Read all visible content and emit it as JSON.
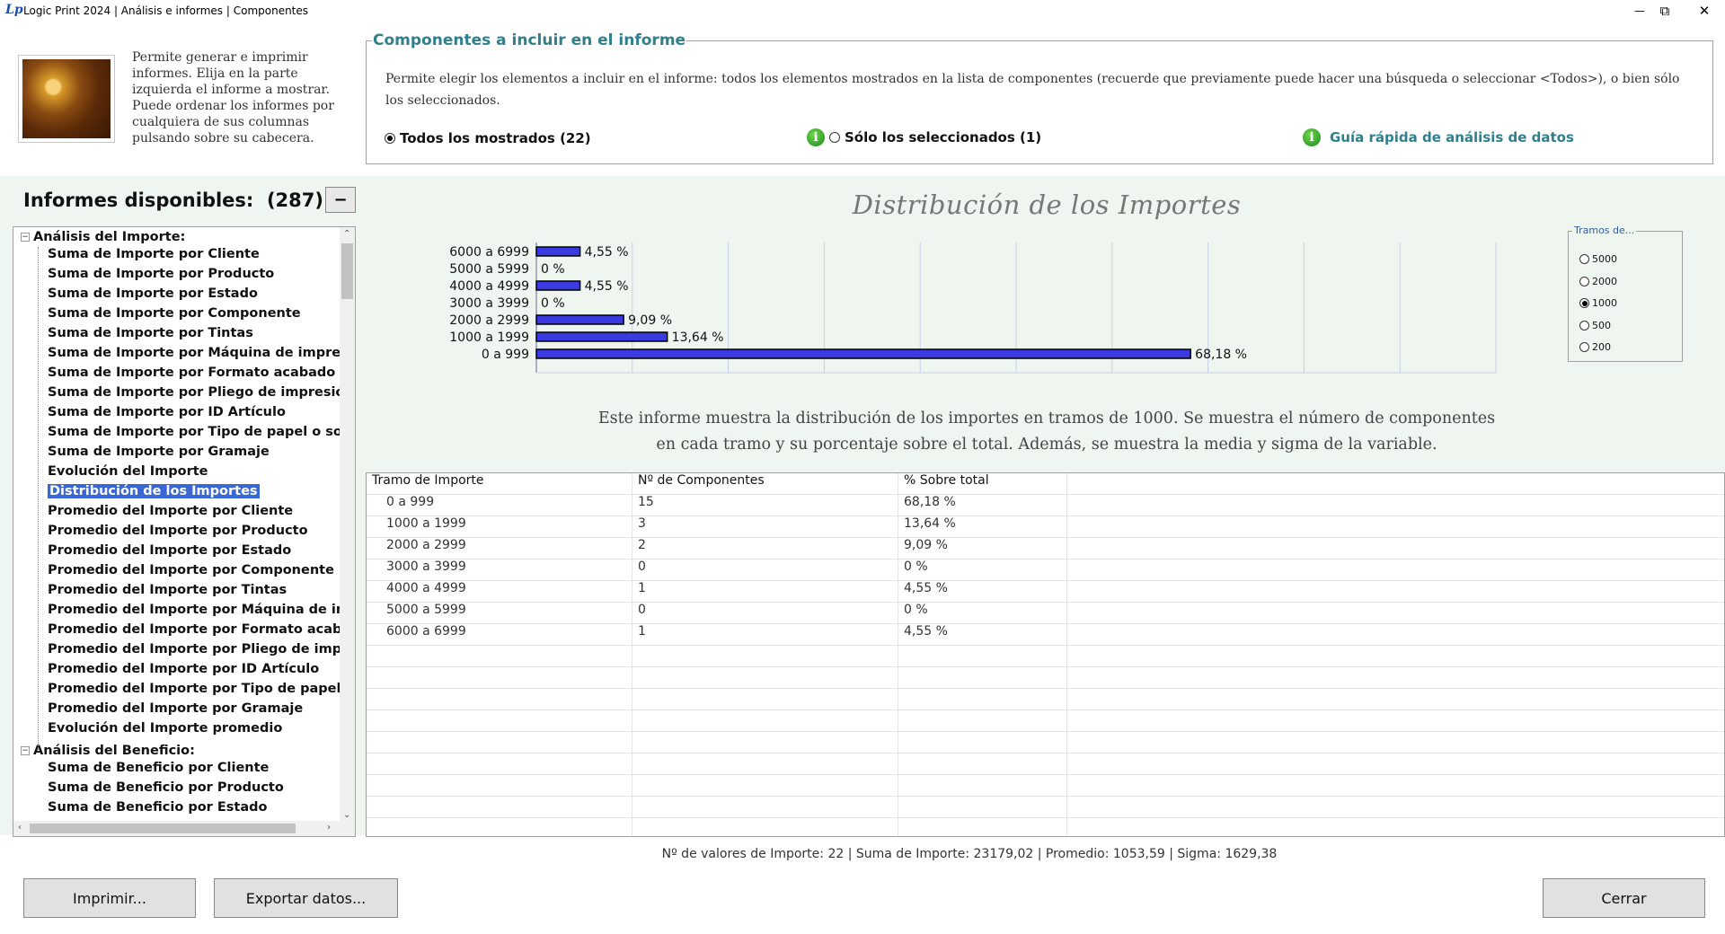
{
  "window": {
    "logo": "Lp",
    "title": "Logic Print 2024 | Análisis e informes | Componentes",
    "min_symbol": "—",
    "max_symbol": "⧉",
    "close_symbol": "✕",
    "logo_icon": "logic-print-logo-icon"
  },
  "intro": "Permite generar e imprimir informes. Elija en la parte izquierda el informe a mostrar. Puede ordenar los informes por cualquiera de sus columnas pulsando sobre su cabecera.",
  "components": {
    "legend": "Componentes a incluir en el informe",
    "description": "Permite elegir los elementos a incluir en el informe: todos los elementos mostrados en la lista de componentes (recuerde que previamente puede hacer una búsqueda o seleccionar <Todos>), o bien sólo los seleccionados.",
    "opt_all": "Todos los mostrados (22)",
    "opt_selected": "Sólo los seleccionados (1)",
    "selected_option": "all",
    "info_glyph": "i",
    "guide": "Guía rápida de análisis de datos"
  },
  "reports": {
    "title": "Informes disponibles:",
    "count": "(287)",
    "collapse_symbol": "−",
    "expander_symbol": "−",
    "selected_index": 12,
    "groups": [
      {
        "label": "Análisis del Importe:",
        "items": [
          "Suma de Importe por Cliente",
          "Suma de Importe por Producto",
          "Suma de Importe por Estado",
          "Suma de Importe por Componente",
          "Suma de Importe por Tintas",
          "Suma de Importe por Máquina de impresión",
          "Suma de Importe por Formato acabado",
          "Suma de Importe por Pliego de impresión",
          "Suma de Importe por ID Artículo",
          "Suma de Importe por Tipo de papel o soporte",
          "Suma de Importe por Gramaje",
          "Evolución del Importe",
          "Distribución de los Importes",
          "Promedio del Importe por Cliente",
          "Promedio del Importe por Producto",
          "Promedio del Importe por Estado",
          "Promedio del Importe por Componente",
          "Promedio del Importe por Tintas",
          "Promedio del Importe por Máquina de impresión",
          "Promedio del Importe por Formato acabado",
          "Promedio del Importe por Pliego de impresión",
          "Promedio del Importe por ID Artículo",
          "Promedio del Importe por Tipo de papel o soporte",
          "Promedio del Importe por Gramaje",
          "Evolución del Importe promedio"
        ]
      },
      {
        "label": "Análisis del Beneficio:",
        "items": [
          "Suma de Beneficio por Cliente",
          "Suma de Beneficio por Producto",
          "Suma de Beneficio por Estado"
        ]
      }
    ]
  },
  "chart_data": {
    "type": "bar",
    "orientation": "horizontal",
    "title": "Distribución de los Importes",
    "categories": [
      "0 a 999",
      "1000 a 1999",
      "2000 a 2999",
      "3000 a 3999",
      "4000 a 4999",
      "5000 a 5999",
      "6000 a 6999"
    ],
    "values": [
      68.18,
      13.64,
      9.09,
      0,
      4.55,
      0,
      4.55
    ],
    "value_labels": [
      "68,18 %",
      "13,64 %",
      "9,09 %",
      "0 %",
      "4,55 %",
      "0 %",
      "4,55 %"
    ],
    "xlim": [
      0,
      100
    ],
    "grid": true,
    "bar_color": "#3a3ae0"
  },
  "tramos": {
    "legend": "Tramos de...",
    "options": [
      "5000",
      "2000",
      "1000",
      "500",
      "200"
    ],
    "selected": "1000"
  },
  "chart_description": [
    "Este informe muestra la distribución de los importes en tramos de 1000. Se muestra el número de componentes",
    "en cada tramo y su porcentaje sobre el total. Además, se muestra la media y sigma de la variable."
  ],
  "table": {
    "headers": [
      "Tramo de Importe",
      "Nº de Componentes",
      "% Sobre total"
    ],
    "rows": [
      [
        "0 a 999",
        "15",
        "68,18 %"
      ],
      [
        "1000 a 1999",
        "3",
        "13,64 %"
      ],
      [
        "2000 a 2999",
        "2",
        "9,09 %"
      ],
      [
        "3000 a 3999",
        "0",
        "0 %"
      ],
      [
        "4000 a 4999",
        "1",
        "4,55 %"
      ],
      [
        "5000 a 5999",
        "0",
        "0 %"
      ],
      [
        "6000 a 6999",
        "1",
        "4,55 %"
      ]
    ]
  },
  "stats": "Nº de valores de Importe: 22  |  Suma de Importe: 23179,02  |  Promedio: 1053,59  |  Sigma: 1629,38",
  "buttons": {
    "print": "Imprimir...",
    "export": "Exportar datos...",
    "close": "Cerrar"
  }
}
